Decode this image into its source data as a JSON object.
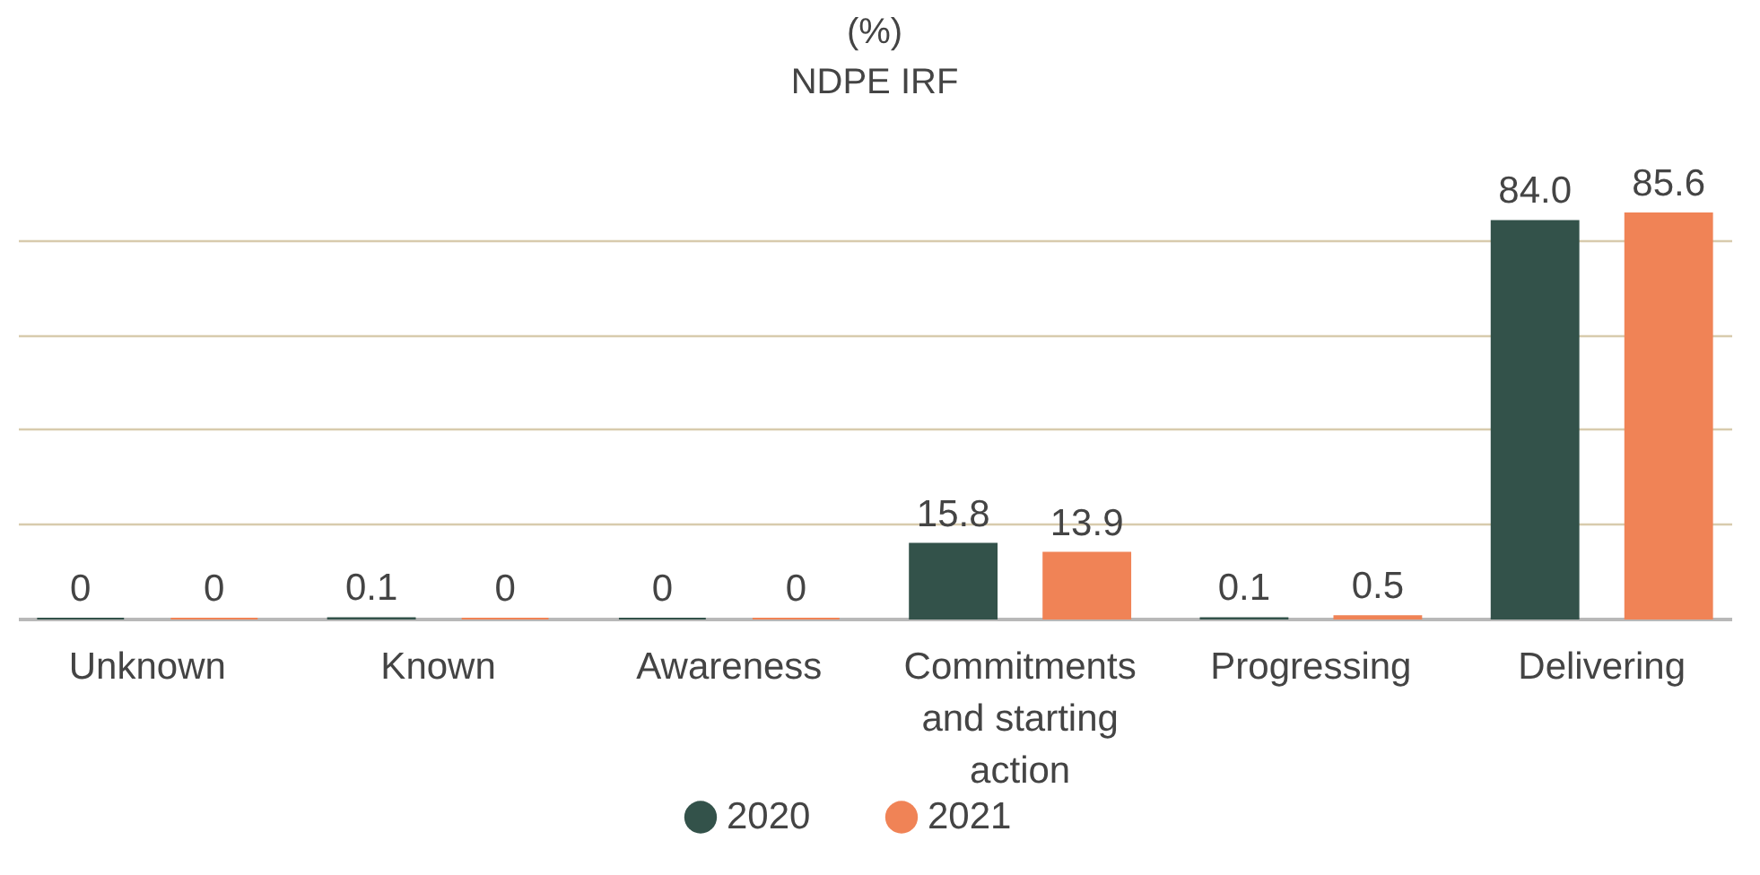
{
  "chart_data": {
    "type": "bar",
    "title": "(%)",
    "subtitle": "NDPE IRF",
    "categories": [
      "Unknown",
      "Known",
      "Awareness",
      "Commitments and starting action",
      "Progressing",
      "Delivering"
    ],
    "series": [
      {
        "name": "2020",
        "color": "#33524a",
        "values": [
          0,
          0.1,
          0,
          15.8,
          0.1,
          84.0
        ],
        "value_labels": [
          "0",
          "0.1",
          "0",
          "15.8",
          "0.1",
          "84.0"
        ]
      },
      {
        "name": "2021",
        "color": "#f08356",
        "values": [
          0,
          0,
          0,
          13.9,
          0.5,
          85.6
        ],
        "value_labels": [
          "0",
          "0",
          "0",
          "13.9",
          "0.5",
          "85.6"
        ]
      }
    ],
    "ylim": [
      0,
      85.6
    ],
    "yticks": [
      {
        "value": 0,
        "label": null
      },
      {
        "value": 20,
        "label": null
      },
      {
        "value": 40,
        "label": null
      },
      {
        "value": 60,
        "label": null
      },
      {
        "value": 80,
        "label": null
      }
    ],
    "grid": "y",
    "legend": "bottom",
    "tick_labels": "x"
  }
}
